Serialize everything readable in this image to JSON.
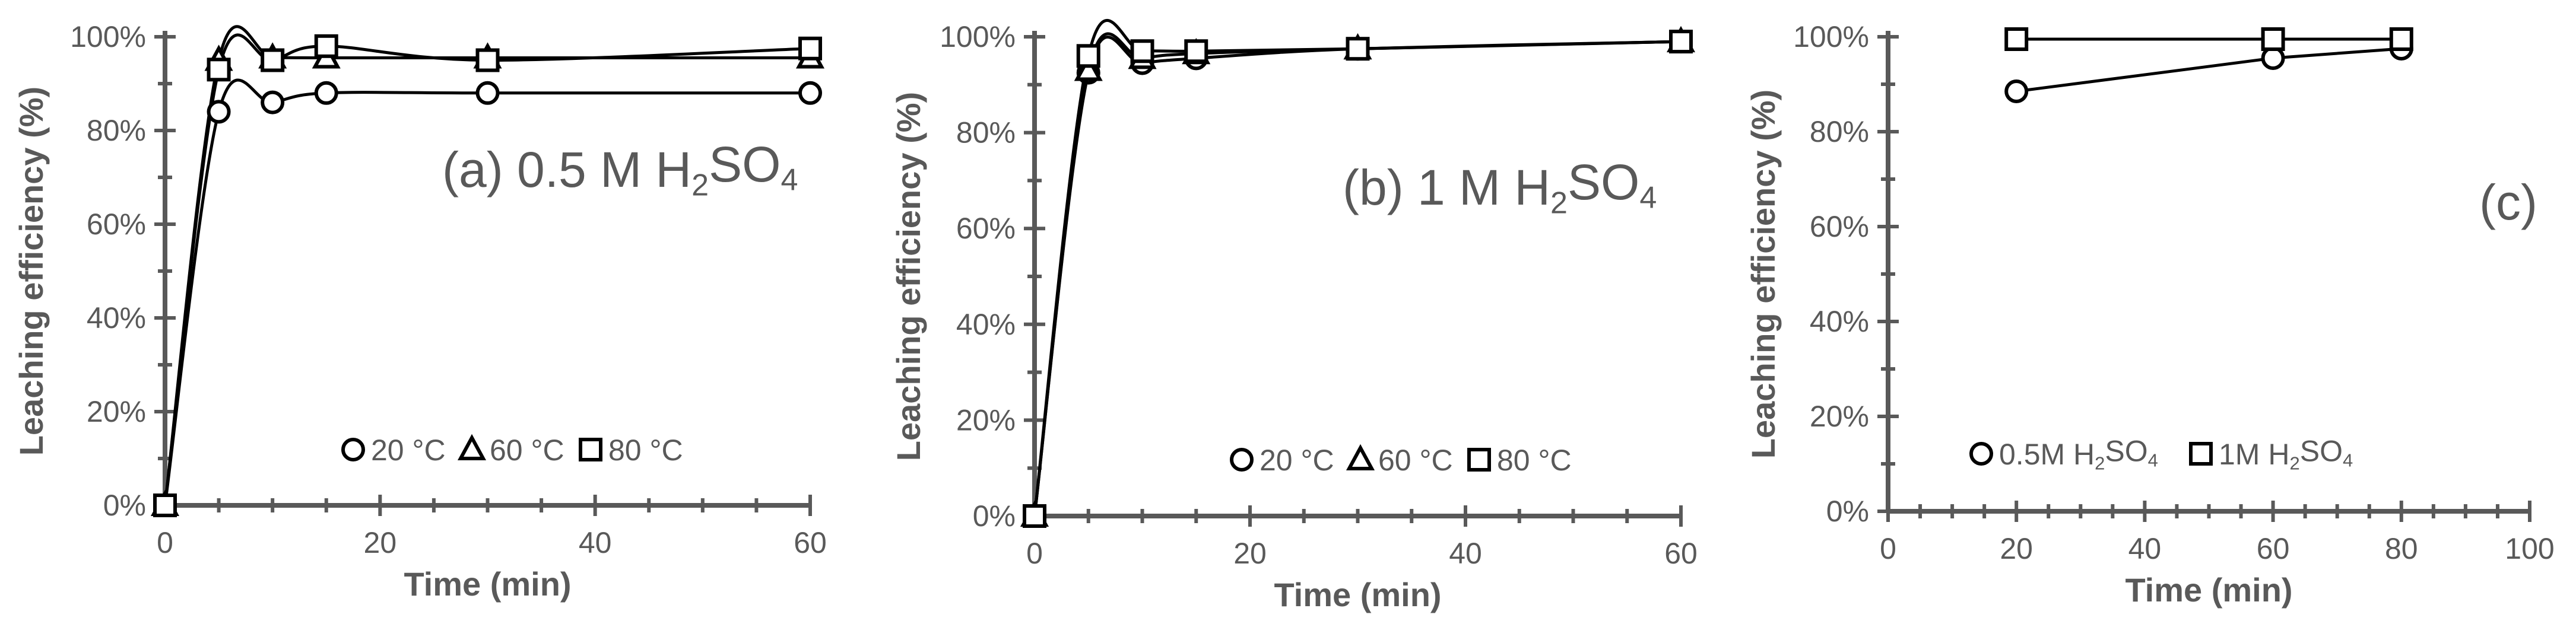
{
  "chart_data": [
    {
      "type": "line",
      "title": "(a) 0.5 M H",
      "title_sub": "2",
      "title_mid": "SO",
      "title_sub2": "4",
      "xlabel": "Time (min)",
      "ylabel": "Leaching efficiency (%)",
      "xlim": [
        0,
        60
      ],
      "ylim": [
        0,
        100
      ],
      "xticks": [
        0,
        20,
        40,
        60
      ],
      "yticks": [
        0,
        20,
        40,
        60,
        80,
        100
      ],
      "xtick_labels": [
        "0",
        "20",
        "40",
        "60"
      ],
      "ytick_labels": [
        "0%",
        "20%",
        "40%",
        "60%",
        "80%",
        "100%"
      ],
      "grid": false,
      "smooth": true,
      "legend_placement": "bottom-right",
      "series": [
        {
          "name": "20 °C",
          "marker": "circle",
          "x": [
            0,
            5,
            10,
            15,
            30,
            60
          ],
          "y": [
            0,
            84,
            86,
            88,
            88,
            88
          ]
        },
        {
          "name": "60 °C",
          "marker": "triangle",
          "x": [
            0,
            5,
            10,
            15,
            30,
            60
          ],
          "y": [
            0,
            95,
            95.5,
            95.5,
            95.5,
            95.5
          ]
        },
        {
          "name": "80 °C",
          "marker": "square",
          "x": [
            0,
            5,
            10,
            15,
            30,
            60
          ],
          "y": [
            0,
            93,
            95,
            98,
            95,
            97.5
          ]
        }
      ]
    },
    {
      "type": "line",
      "title": "(b) 1 M H",
      "title_sub": "2",
      "title_mid": "SO",
      "title_sub2": "4",
      "xlabel": "Time (min)",
      "ylabel": "Leaching efficiency (%)",
      "xlim": [
        0,
        60
      ],
      "ylim": [
        0,
        100
      ],
      "xticks": [
        0,
        20,
        40,
        60
      ],
      "yticks": [
        0,
        20,
        40,
        60,
        80,
        100
      ],
      "xtick_labels": [
        "0",
        "20",
        "40",
        "60"
      ],
      "ytick_labels": [
        "0%",
        "20%",
        "40%",
        "60%",
        "80%",
        "100%"
      ],
      "grid": false,
      "smooth": true,
      "legend_placement": "bottom-right",
      "series": [
        {
          "name": "20 °C",
          "marker": "circle",
          "x": [
            0,
            5,
            10,
            15,
            30,
            60
          ],
          "y": [
            0,
            92.5,
            94.5,
            95.5,
            97.5,
            99
          ]
        },
        {
          "name": "60 °C",
          "marker": "triangle",
          "x": [
            0,
            5,
            10,
            15,
            30,
            60
          ],
          "y": [
            0,
            93,
            95.5,
            96.5,
            97.5,
            99
          ]
        },
        {
          "name": "80 °C",
          "marker": "square",
          "x": [
            0,
            5,
            10,
            15,
            30,
            60
          ],
          "y": [
            0,
            96,
            97,
            97,
            97.5,
            99
          ]
        }
      ]
    },
    {
      "type": "line",
      "title": "(c)",
      "xlabel": "Time (min)",
      "ylabel": "Leaching efficiency (%)",
      "xlim": [
        0,
        100
      ],
      "ylim": [
        0,
        100
      ],
      "xticks": [
        0,
        20,
        40,
        60,
        80,
        100
      ],
      "yticks": [
        0,
        20,
        40,
        60,
        80,
        100
      ],
      "xtick_labels": [
        "0",
        "20",
        "40",
        "60",
        "80",
        "100"
      ],
      "ytick_labels": [
        "0%",
        "20%",
        "40%",
        "60%",
        "80%",
        "100%"
      ],
      "grid": false,
      "smooth": false,
      "legend_placement": "bottom-left",
      "series": [
        {
          "name": "0.5M H",
          "name_sub": "2",
          "name_mid": "SO",
          "name_sub2": "4",
          "marker": "circle",
          "x": [
            20,
            60,
            80
          ],
          "y": [
            88.5,
            95.5,
            97.5
          ]
        },
        {
          "name": "1M H",
          "name_sub": "2",
          "name_mid": "SO",
          "name_sub2": "4",
          "marker": "square",
          "x": [
            20,
            60,
            80
          ],
          "y": [
            99.5,
            99.5,
            99.5
          ]
        }
      ]
    }
  ]
}
